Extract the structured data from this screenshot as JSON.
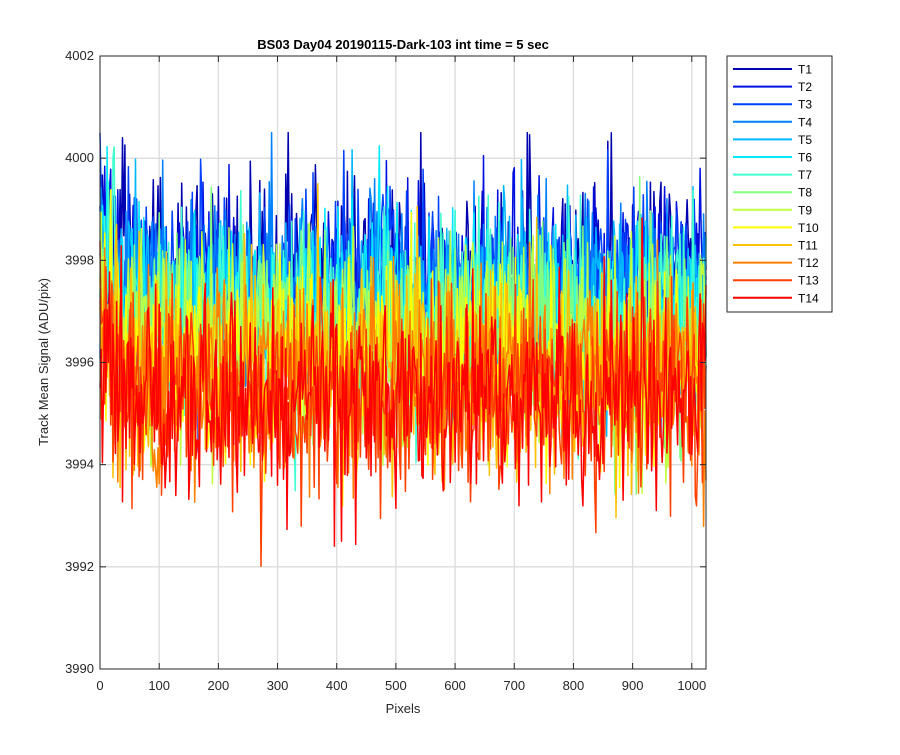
{
  "chart_data": {
    "type": "line",
    "title": "BS03 Day04 20190115-Dark-103 int time = 5 sec",
    "xlabel": "Pixels",
    "ylabel": "Track Mean Signal (ADU/pix)",
    "xlim": [
      0,
      1024
    ],
    "ylim": [
      3990,
      4002
    ],
    "xticks": [
      0,
      100,
      200,
      300,
      400,
      500,
      600,
      700,
      800,
      900,
      1000
    ],
    "yticks": [
      3990,
      3992,
      3994,
      3996,
      3998,
      4000,
      4002
    ],
    "grid": true,
    "legend_position": "outside-top-right",
    "noise_amplitude": 1.6,
    "series": [
      {
        "name": "T1",
        "color": "#0000b0",
        "mean": 3997.7
      },
      {
        "name": "T2",
        "color": "#0010e0",
        "mean": 3997.5
      },
      {
        "name": "T3",
        "color": "#0040ff",
        "mean": 3997.35
      },
      {
        "name": "T4",
        "color": "#0080ff",
        "mean": 3997.2
      },
      {
        "name": "T5",
        "color": "#00b8ff",
        "mean": 3997.05
      },
      {
        "name": "T6",
        "color": "#00e8ff",
        "mean": 3996.9
      },
      {
        "name": "T7",
        "color": "#40ffd0",
        "mean": 3996.7
      },
      {
        "name": "T8",
        "color": "#80ff80",
        "mean": 3996.5
      },
      {
        "name": "T9",
        "color": "#c0ff40",
        "mean": 3996.3
      },
      {
        "name": "T10",
        "color": "#ffff00",
        "mean": 3996.0
      },
      {
        "name": "T11",
        "color": "#ffc000",
        "mean": 3995.8
      },
      {
        "name": "T12",
        "color": "#ff8000",
        "mean": 3995.6
      },
      {
        "name": "T13",
        "color": "#ff4000",
        "mean": 3995.4
      },
      {
        "name": "T14",
        "color": "#ff0000",
        "mean": 3995.2
      }
    ]
  }
}
